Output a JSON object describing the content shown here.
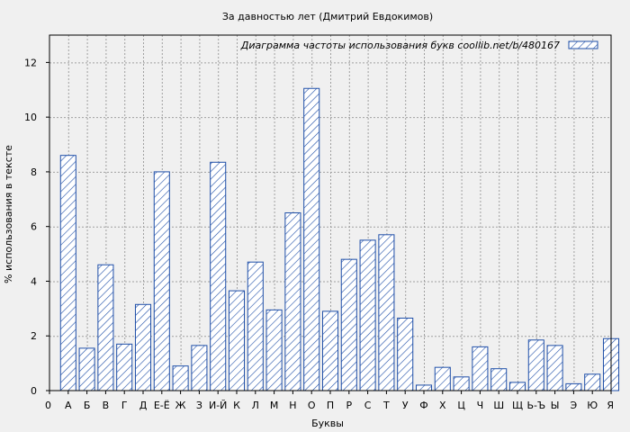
{
  "chart_data": {
    "type": "bar",
    "title": "За давностью лет (Дмитрий Евдокимов)",
    "xlabel": "Буквы",
    "ylabel": "% использования в тексте",
    "legend": {
      "label": "Диаграмма частоты использования букв  coollib.net/b/480167",
      "position": "top-right"
    },
    "categories": [
      "А",
      "Б",
      "В",
      "Г",
      "Д",
      "Е-Ё",
      "Ж",
      "З",
      "И-Й",
      "К",
      "Л",
      "М",
      "Н",
      "О",
      "П",
      "Р",
      "С",
      "Т",
      "У",
      "Ф",
      "Х",
      "Ц",
      "Ч",
      "Ш",
      "Щ",
      "Ь-Ъ",
      "Ы",
      "Э",
      "Ю",
      "Я"
    ],
    "x_tick_labels": [
      "0",
      "А",
      "Б",
      "В",
      "Г",
      "Д",
      "Е-Ё",
      "Ж",
      "З",
      "И-Й",
      "К",
      "Л",
      "М",
      "Н",
      "О",
      "П",
      "Р",
      "С",
      "Т",
      "У",
      "Ф",
      "Х",
      "Ц",
      "Ч",
      "Ш",
      "Щ",
      "Ь-Ъ",
      "Ы",
      "Э",
      "Ю",
      "Я"
    ],
    "values": [
      8.6,
      1.55,
      4.6,
      1.7,
      3.15,
      8.0,
      0.9,
      1.65,
      8.35,
      3.65,
      4.7,
      2.95,
      6.5,
      11.05,
      2.9,
      4.8,
      5.5,
      5.7,
      2.65,
      0.2,
      0.85,
      0.5,
      1.6,
      0.8,
      0.3,
      1.85,
      1.65,
      0.25,
      0.6,
      1.9
    ],
    "ylim": [
      0,
      13
    ],
    "yticks": [
      0,
      2,
      4,
      6,
      8,
      10,
      12
    ],
    "grid": true,
    "colors": {
      "bar_stroke": "#1f4fa8",
      "bar_fill": "#ffffff",
      "grid": "#a0a0a0",
      "background": "#f0f0f0"
    }
  }
}
